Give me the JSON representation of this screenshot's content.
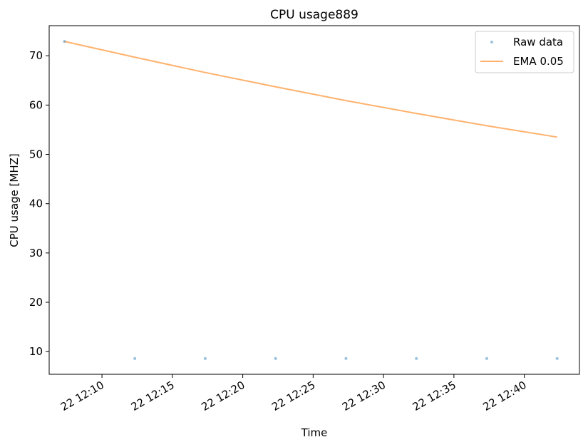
{
  "chart_data": {
    "type": "line",
    "title": "CPU usage889",
    "xlabel": "Time",
    "ylabel": "CPU usage [MHZ]",
    "x_ticks": [
      "22 12:10",
      "22 12:15",
      "22 12:20",
      "22 12:25",
      "22 12:30",
      "22 12:35",
      "22 12:40"
    ],
    "y_ticks": [
      10,
      20,
      30,
      40,
      50,
      60,
      70
    ],
    "xlim": [
      "12:06:15",
      "12:43:55"
    ],
    "ylim": [
      5.4,
      76.1
    ],
    "legend_position": "top-right",
    "grid": false,
    "series": [
      {
        "name": "Raw data",
        "style": "points",
        "color": "#1f77b4",
        "x": [
          "12:07:20",
          "12:12:20",
          "12:17:20",
          "12:22:20",
          "12:27:20",
          "12:32:20",
          "12:37:20",
          "12:42:20"
        ],
        "values": [
          72.9,
          8.6,
          8.6,
          8.6,
          8.6,
          8.6,
          8.6,
          8.6
        ]
      },
      {
        "name": "EMA 0.05",
        "style": "line",
        "color": "#ff7f0e",
        "x": [
          "12:07:20",
          "12:12:20",
          "12:17:20",
          "12:22:20",
          "12:27:20",
          "12:32:20",
          "12:37:20",
          "12:42:20"
        ],
        "values": [
          72.9,
          69.7,
          66.6,
          63.7,
          60.9,
          58.3,
          55.8,
          53.5
        ]
      }
    ]
  }
}
